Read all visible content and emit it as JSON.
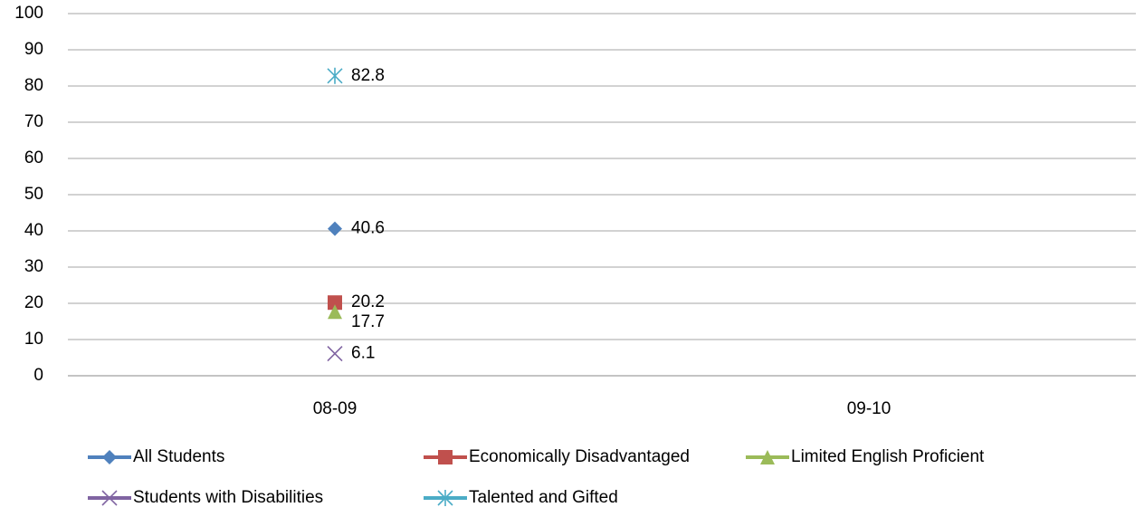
{
  "chart_data": {
    "type": "line",
    "categories": [
      "08-09",
      "09-10"
    ],
    "series": [
      {
        "name": "All Students",
        "color": "#4f81bd",
        "marker": "diamond",
        "values": [
          40.6,
          null
        ]
      },
      {
        "name": "Economically Disadvantaged",
        "color": "#c0504d",
        "marker": "square",
        "values": [
          20.2,
          null
        ]
      },
      {
        "name": "Limited English Proficient",
        "color": "#9bbb59",
        "marker": "triangle",
        "values": [
          17.7,
          null
        ]
      },
      {
        "name": "Students with Disabilities",
        "color": "#8064a2",
        "marker": "x",
        "values": [
          6.1,
          null
        ]
      },
      {
        "name": "Talented and Gifted",
        "color": "#4bacc6",
        "marker": "star",
        "values": [
          82.8,
          null
        ]
      }
    ],
    "ylim": [
      0,
      100
    ],
    "yticks": [
      0,
      10,
      20,
      30,
      40,
      50,
      60,
      70,
      80,
      90,
      100
    ],
    "grid": true,
    "legend": "bottom"
  }
}
